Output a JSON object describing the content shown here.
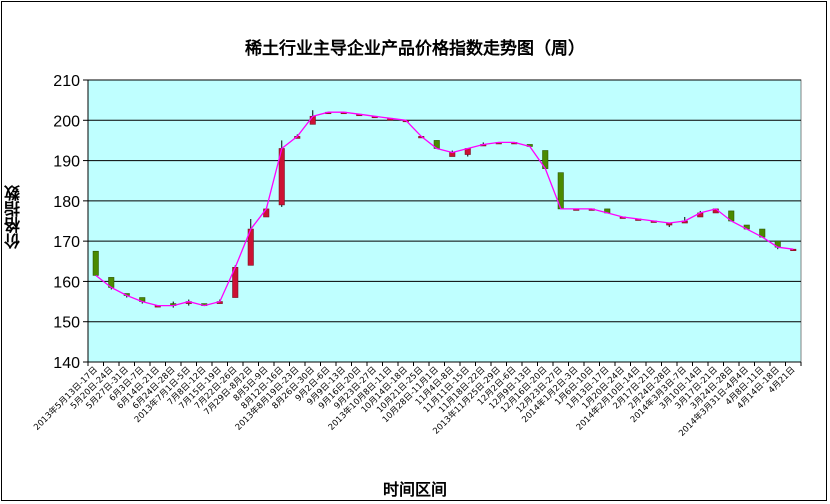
{
  "chart_data": {
    "type": "candlestick-line",
    "title": "稀土行业主导企业产品价格指数走势图（周）",
    "xlabel": "时间区间",
    "ylabel": "价格指数",
    "ylim": [
      140,
      210
    ],
    "yticks": [
      140,
      150,
      160,
      170,
      180,
      190,
      200,
      210
    ],
    "grid": true,
    "legend": "none",
    "colors": {
      "plot_bg": "#bfffff",
      "line": "#ff00ff",
      "up_candle": "#cc1133",
      "down_candle": "#4a8a00",
      "grid": "#000000"
    },
    "categories": [
      "2013年5月13日-17日",
      "5月20日-24日",
      "5月27日-31日",
      "6月3日-7日",
      "6月14日-21日",
      "6月24日-28日",
      "2013年7月1日-5日",
      "7月8日-12日",
      "7月15日-19日",
      "7月22日-26日",
      "7月29日-8月2日",
      "8月5日-9日",
      "8月12日-16日",
      "2013年8月19日-23日",
      "8月26日-30日",
      "9月2日-6日",
      "9月9日-13日",
      "9月16日-20日",
      "9月23日-27日",
      "2013年10月8日-11日",
      "10月14日-18日",
      "10月21日-25日",
      "10月28日-11月1日",
      "11月4日-8日",
      "11月11日-15日",
      "11月18日-22日",
      "2013年11月25日-29日",
      "12月2日-6日",
      "12月9日-13日",
      "12月16日-20日",
      "12月23日-27日",
      "2014年1月2日-3日",
      "1月6日-10日",
      "1月13日-17日",
      "1月20日-24日",
      "2014年2月10日-14日",
      "2月17日-21日",
      "2月24日-28日",
      "2014年3月3日-7日",
      "3月10日-14日",
      "3月17日-21日",
      "3月24日-28日",
      "2014年3月31日-4月4日",
      "4月8日-11日",
      "4月14日-18日",
      "4月21日"
    ],
    "close": [
      161.5,
      158.5,
      156.5,
      155.0,
      154.0,
      154.0,
      155.0,
      154.0,
      155.0,
      163.5,
      173.0,
      178.0,
      193.0,
      196.0,
      201.0,
      202.0,
      202.0,
      201.5,
      201.0,
      200.5,
      200.0,
      196.0,
      193.0,
      192.0,
      193.0,
      194.0,
      194.5,
      194.5,
      193.5,
      188.0,
      178.0,
      178.0,
      178.0,
      177.0,
      176.0,
      175.5,
      175.0,
      174.5,
      175.0,
      177.0,
      178.0,
      175.0,
      173.0,
      171.0,
      168.5,
      168.0
    ],
    "open": [
      167.5,
      161.0,
      157.0,
      156.0,
      154.0,
      154.5,
      154.5,
      154.5,
      154.5,
      156.0,
      164.0,
      176.0,
      179.0,
      195.5,
      199.0,
      202.0,
      202.0,
      201.5,
      201.0,
      200.0,
      200.0,
      196.0,
      195.0,
      191.0,
      191.5,
      194.0,
      194.5,
      194.5,
      194.0,
      192.5,
      187.0,
      178.0,
      178.0,
      178.0,
      176.0,
      175.5,
      175.0,
      174.0,
      174.5,
      176.0,
      177.0,
      177.5,
      174.0,
      173.0,
      170.0,
      168.0
    ],
    "low": [
      161.5,
      158.0,
      156.0,
      154.5,
      154.0,
      153.5,
      154.0,
      154.0,
      154.5,
      156.0,
      164.0,
      176.0,
      178.5,
      195.5,
      199.0,
      202.0,
      202.0,
      201.5,
      201.0,
      200.0,
      200.0,
      196.0,
      193.0,
      191.5,
      191.0,
      194.0,
      194.5,
      194.5,
      193.5,
      188.0,
      178.0,
      178.0,
      178.0,
      177.0,
      176.0,
      175.5,
      175.0,
      173.5,
      174.5,
      176.0,
      177.0,
      175.0,
      173.0,
      171.0,
      168.0,
      168.0
    ],
    "high": [
      167.5,
      161.0,
      157.0,
      156.0,
      154.0,
      155.0,
      155.5,
      154.5,
      155.5,
      164.0,
      175.5,
      178.0,
      195.0,
      196.5,
      202.5,
      202.0,
      202.0,
      201.5,
      201.0,
      200.5,
      200.0,
      196.0,
      195.0,
      192.5,
      193.0,
      194.5,
      194.5,
      194.5,
      194.0,
      192.5,
      187.0,
      178.0,
      178.0,
      178.0,
      176.0,
      175.5,
      175.0,
      174.5,
      176.0,
      177.5,
      178.0,
      177.5,
      174.0,
      173.0,
      170.0,
      168.0
    ]
  }
}
